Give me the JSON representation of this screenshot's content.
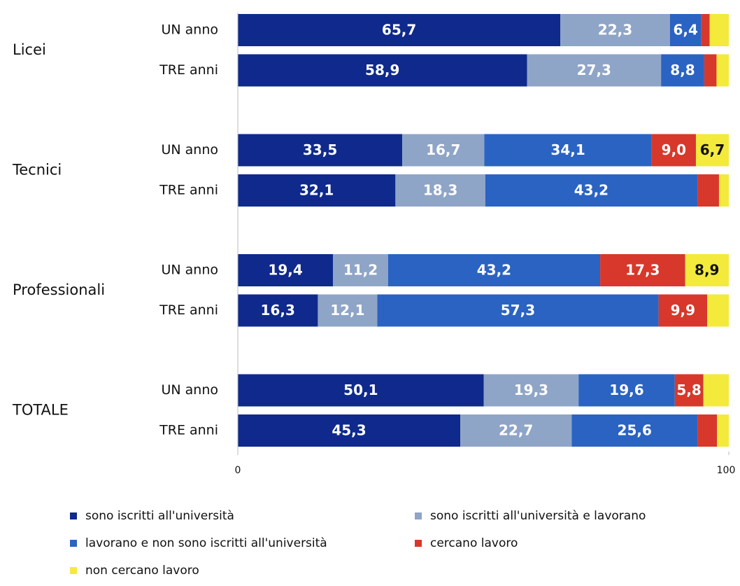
{
  "chart_data": {
    "type": "stacked-bar-horizontal",
    "groups": [
      "Licei",
      "Tecnici",
      "Professionali",
      "TOTALE"
    ],
    "categories": [
      "UN anno",
      "TRE anni",
      "UN anno",
      "TRE anni",
      "UN anno",
      "TRE anni",
      "UN anno",
      "TRE anni"
    ],
    "xlim": [
      0,
      100
    ],
    "xticks": [
      0,
      100
    ],
    "series": [
      {
        "name": "sono iscritti all'università",
        "color": "#0f2a8c",
        "label_color": "#ffffff",
        "values": [
          65.7,
          58.9,
          33.5,
          32.1,
          19.4,
          16.3,
          50.1,
          45.3
        ],
        "value_labels": [
          "65,7",
          "58,9",
          "33,5",
          "32,1",
          "19,4",
          "16,3",
          "50,1",
          "45,3"
        ]
      },
      {
        "name": "sono iscritti all'università e lavorano",
        "color": "#8fa5c7",
        "label_color": "#ffffff",
        "values": [
          22.3,
          27.3,
          16.7,
          18.3,
          11.2,
          12.1,
          19.3,
          22.7
        ],
        "value_labels": [
          "22,3",
          "27,3",
          "16,7",
          "18,3",
          "11,2",
          "12,1",
          "19,3",
          "22,7"
        ]
      },
      {
        "name": "lavorano e non sono iscritti all'università",
        "color": "#2b63c2",
        "label_color": "#ffffff",
        "values": [
          6.4,
          8.8,
          34.1,
          43.2,
          43.2,
          57.3,
          19.6,
          25.6
        ],
        "value_labels": [
          "6,4",
          "8,8",
          "34,1",
          "43,2",
          "43,2",
          "57,3",
          "19,6",
          "25,6"
        ]
      },
      {
        "name": "cercano lavoro",
        "color": "#d7382b",
        "label_color": "#ffffff",
        "values": [
          1.7,
          2.5,
          9.0,
          4.4,
          17.3,
          9.9,
          5.8,
          4.0
        ],
        "value_labels": [
          null,
          null,
          "9,0",
          null,
          "17,3",
          "9,9",
          "5,8",
          null
        ]
      },
      {
        "name": "non cercano lavoro",
        "color": "#f3ea3c",
        "label_color": "#111111",
        "values": [
          3.9,
          2.5,
          6.7,
          2.0,
          8.9,
          4.4,
          5.2,
          2.4
        ],
        "value_labels": [
          null,
          null,
          "6,7",
          null,
          "8,9",
          null,
          null,
          null
        ]
      }
    ]
  }
}
